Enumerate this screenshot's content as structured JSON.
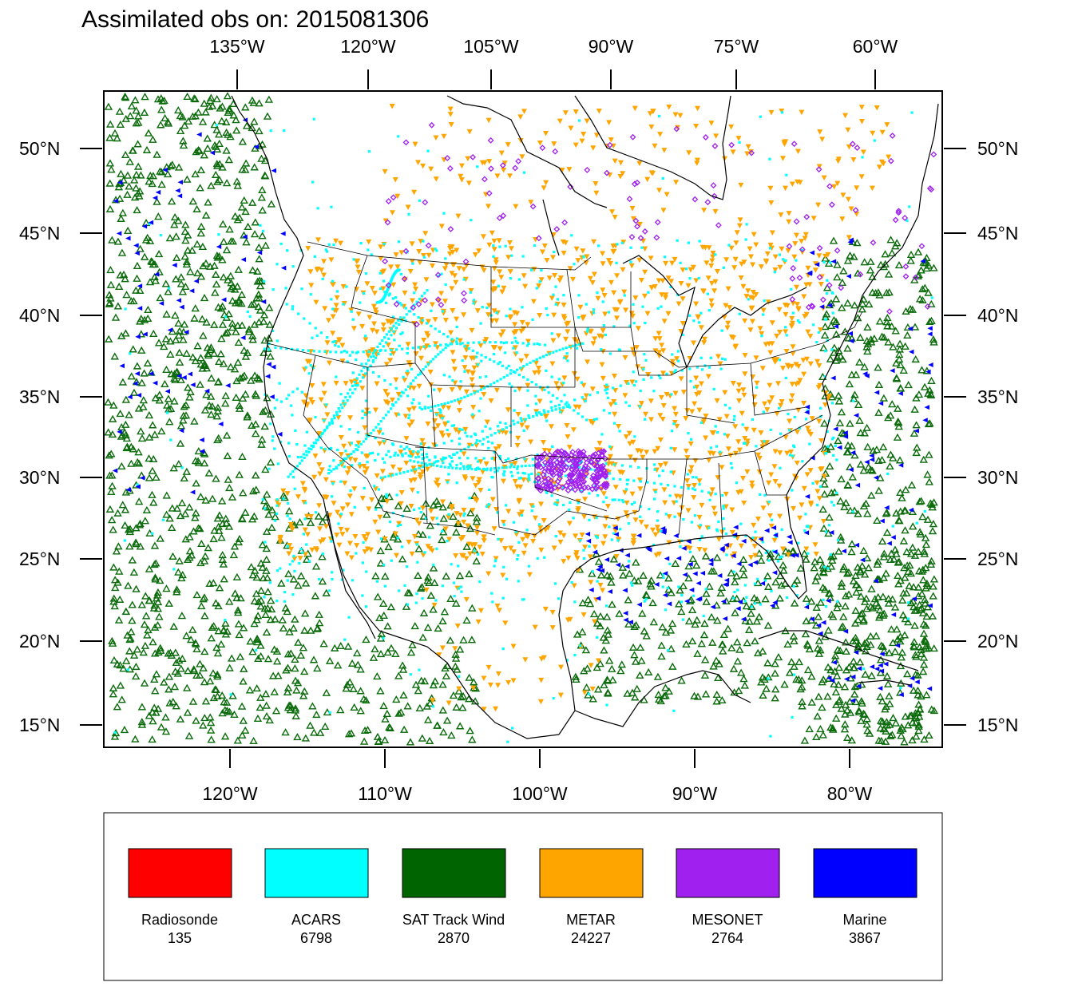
{
  "title": "Assimilated obs on: 2015081306",
  "top_axis": [
    "135°W",
    "120°W",
    "105°W",
    "90°W",
    "75°W",
    "60°W"
  ],
  "bottom_axis": [
    "120°W",
    "110°W",
    "100°W",
    "90°W",
    "80°W"
  ],
  "left_axis": [
    "50°N",
    "45°N",
    "40°N",
    "35°N",
    "30°N",
    "25°N",
    "20°N",
    "15°N"
  ],
  "right_axis": [
    "50°N",
    "45°N",
    "40°N",
    "35°N",
    "30°N",
    "25°N",
    "20°N",
    "15°N"
  ],
  "legend": [
    {
      "label": "Radiosonde",
      "count": "135",
      "color": "#ff0000"
    },
    {
      "label": "ACARS",
      "count": "6798",
      "color": "#00ffff"
    },
    {
      "label": "SAT Track Wind",
      "count": "2870",
      "color": "#006400"
    },
    {
      "label": "METAR",
      "count": "24227",
      "color": "#ffa500"
    },
    {
      "label": "MESONET",
      "count": "2764",
      "color": "#a020f0"
    },
    {
      "label": "Marine",
      "count": "3867",
      "color": "#0000ff"
    }
  ]
}
